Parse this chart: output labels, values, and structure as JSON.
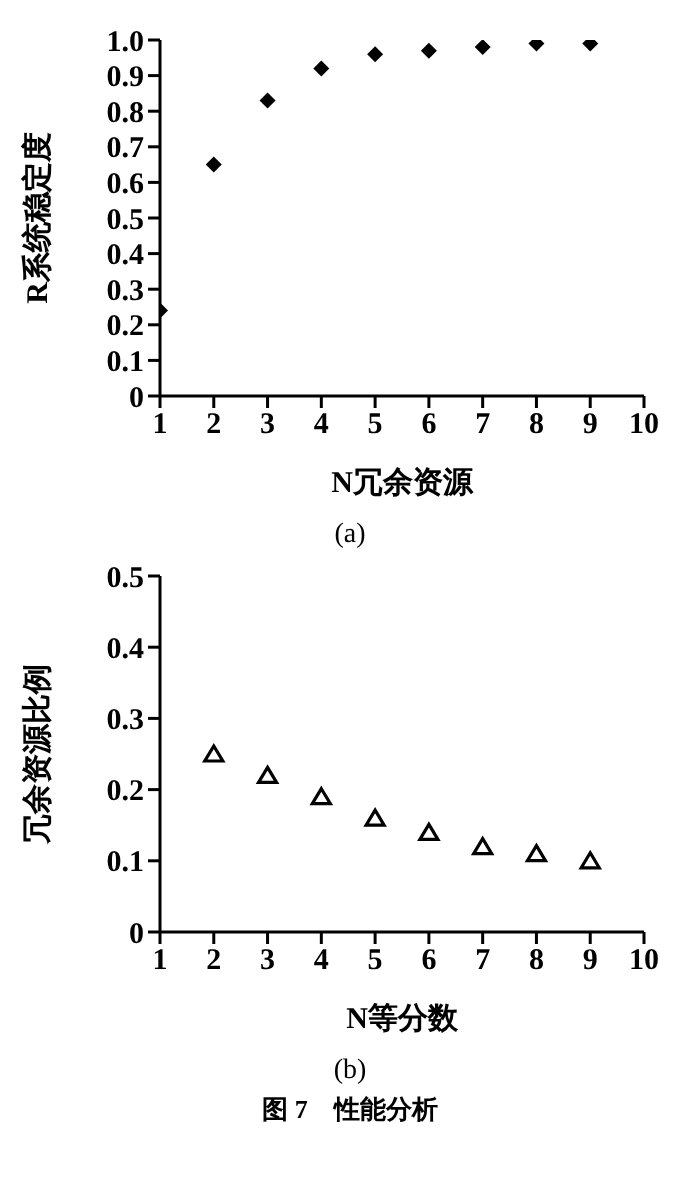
{
  "chart_data": [
    {
      "type": "scatter",
      "xlabel": "N冗余资源",
      "ylabel": "R系统稳定度",
      "x": [
        1,
        2,
        3,
        4,
        5,
        6,
        7,
        8,
        9
      ],
      "values": [
        0.24,
        0.65,
        0.83,
        0.92,
        0.96,
        0.97,
        0.98,
        0.99,
        0.99
      ],
      "color": "#000000",
      "marker": "diamond",
      "xlim": [
        1,
        10
      ],
      "xticks": [
        1,
        2,
        3,
        4,
        5,
        6,
        7,
        8,
        9,
        10
      ],
      "ylim": [
        0,
        1
      ],
      "yticks": [
        0,
        0.1,
        0.2,
        0.3,
        0.4,
        0.5,
        0.6,
        0.7,
        0.8,
        0.9,
        {
          "value": 1,
          "label": "1.0"
        }
      ],
      "grid": false,
      "legend": false,
      "annotations": [
        "(a)"
      ]
    },
    {
      "type": "scatter",
      "xlabel": "N等分数",
      "ylabel": "冗余资源比例",
      "x": [
        2,
        3,
        4,
        5,
        6,
        7,
        8,
        9
      ],
      "values": [
        0.25,
        0.22,
        0.19,
        0.16,
        0.14,
        0.12,
        0.11,
        0.1
      ],
      "color": "#000000",
      "marker": "triangle",
      "xlim": [
        1,
        10
      ],
      "xticks": [
        1,
        2,
        3,
        4,
        5,
        6,
        7,
        8,
        9,
        10
      ],
      "ylim": [
        0,
        0.5
      ],
      "yticks": [
        0,
        0.1,
        0.2,
        0.3,
        0.4,
        0.5
      ],
      "grid": false,
      "legend": false,
      "annotations": [
        "(b)",
        "图 7　性能分析"
      ]
    }
  ]
}
